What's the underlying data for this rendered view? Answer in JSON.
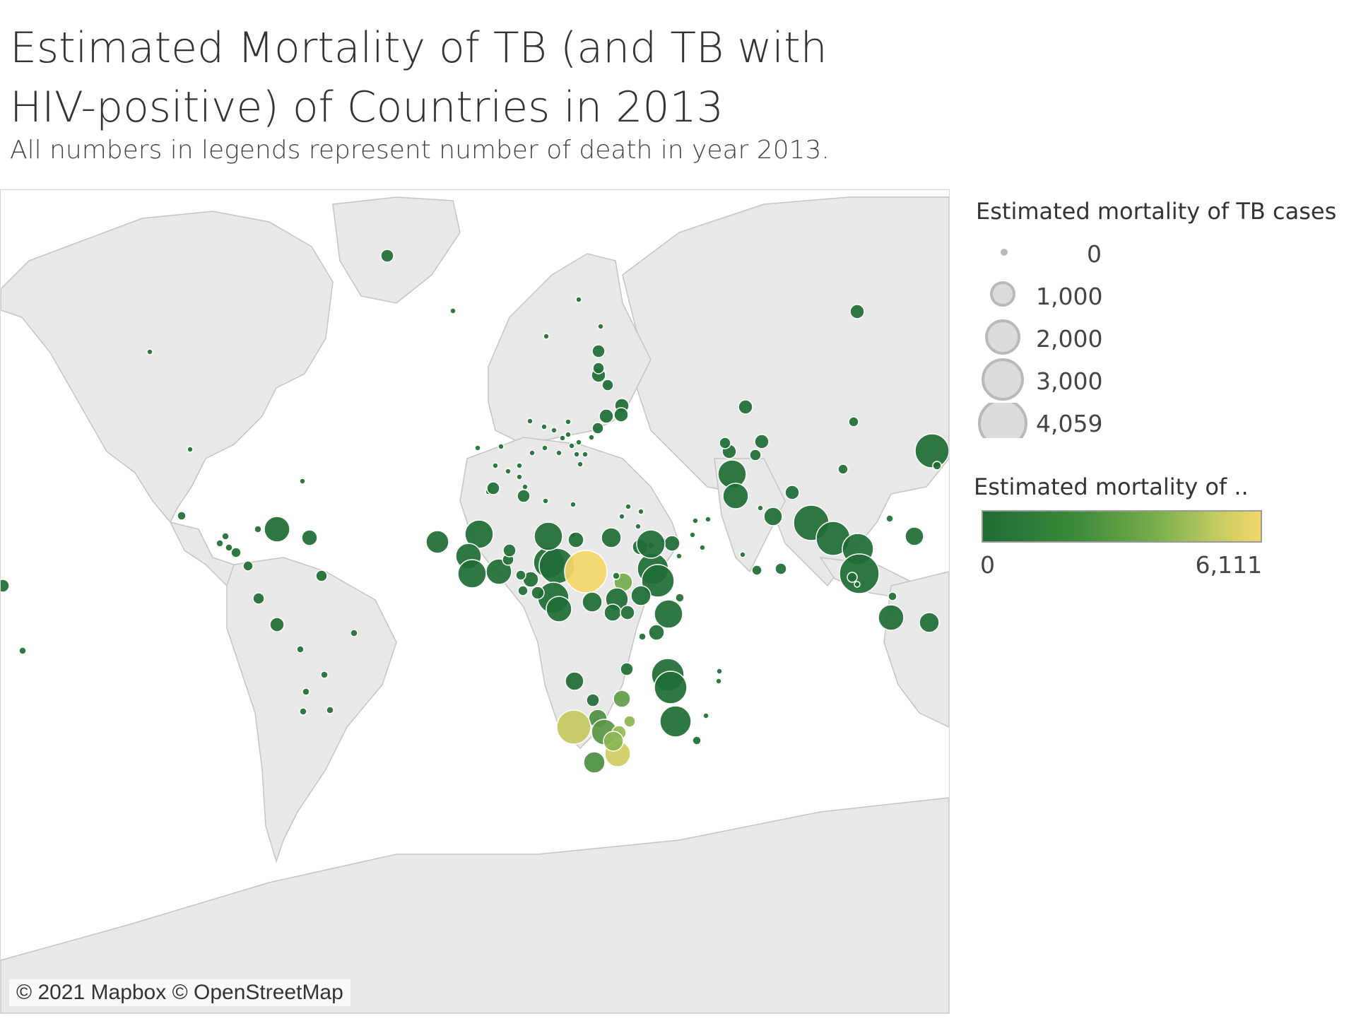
{
  "title": "Estimated Mortality of TB (and TB with HIV-positive) of Countries in 2013",
  "subtitle": "All numbers in legends represent number of death in year 2013.",
  "map": {
    "attribution": "© 2021 Mapbox © OpenStreetMap",
    "land_color": "#e8e8e8",
    "border_color": "#c4c4c4",
    "water_color": "#ffffff"
  },
  "size_legend": {
    "title": "Estimated mortality of TB cases",
    "items": [
      {
        "label": "0",
        "value": 0
      },
      {
        "label": "1,000",
        "value": 1000
      },
      {
        "label": "2,000",
        "value": 2000
      },
      {
        "label": "3,000",
        "value": 3000
      },
      {
        "label": "4,059",
        "value": 4059
      }
    ],
    "circle_fill": "#dcdcdc",
    "circle_stroke": "#b9b9b9"
  },
  "color_legend": {
    "title": "Estimated mortality of ..",
    "min_label": "0",
    "max_label": "6,111",
    "min": 0,
    "max": 6111,
    "color_low": "#1f6d35",
    "color_high": "#f4d66a"
  }
}
